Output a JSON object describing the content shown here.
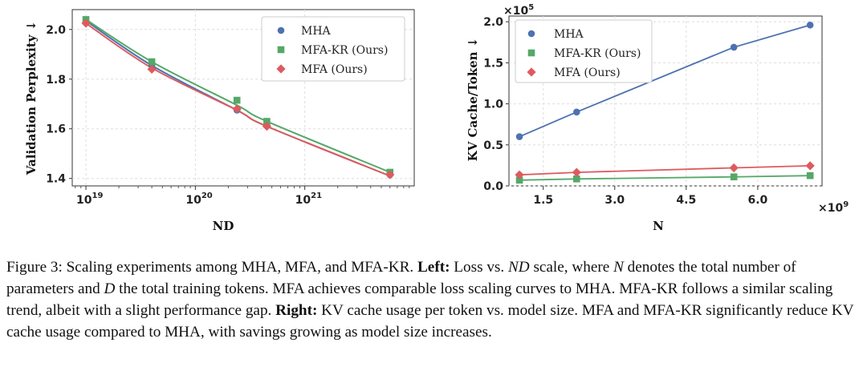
{
  "colors": {
    "MHA": "#4c72b0",
    "MFA-KR (Ours)": "#55a868",
    "MFA (Ours)": "#dd5b5e"
  },
  "chart_data": [
    {
      "type": "line",
      "id": "left",
      "title": "",
      "xlabel": "ND",
      "ylabel": "Validation Perplexity ↓",
      "xscale": "log",
      "xlim": [
        7.5e+18,
        1e+22
      ],
      "ylim": [
        1.37,
        2.08
      ],
      "yticks": [
        1.4,
        1.6,
        1.8,
        2.0
      ],
      "ytick_labels": [
        "1.4",
        "1.6",
        "1.8",
        "2.0"
      ],
      "xticks": [
        1e+19,
        1e+20,
        1e+21
      ],
      "xtick_labels": [
        {
          "base": "10",
          "exp": "19"
        },
        {
          "base": "10",
          "exp": "20"
        },
        {
          "base": "10",
          "exp": "21"
        }
      ],
      "grid": true,
      "legend": "top-right",
      "series": [
        {
          "name": "MHA",
          "marker": "circle",
          "x": [
            1e+19,
            4e+19,
            2.4e+20,
            4.5e+20,
            6e+21
          ],
          "y": [
            2.03,
            1.855,
            1.675,
            1.615,
            1.415
          ]
        },
        {
          "name": "MFA-KR (Ours)",
          "marker": "square",
          "x": [
            1e+19,
            4e+19,
            2.4e+20,
            4.5e+20,
            6e+21
          ],
          "y": [
            2.04,
            1.87,
            1.715,
            1.63,
            1.425
          ]
        },
        {
          "name": "MFA (Ours)",
          "marker": "diamond",
          "x": [
            1e+19,
            4e+19,
            2.4e+20,
            4.5e+20,
            6e+21
          ],
          "y": [
            2.025,
            1.84,
            1.68,
            1.61,
            1.415
          ]
        }
      ],
      "fit_curves": [
        {
          "name": "MHA",
          "x": [
            1e+19,
            4e+19,
            2.4e+20,
            4.5e+20,
            6e+21
          ],
          "y": [
            2.035,
            1.855,
            1.675,
            1.61,
            1.41
          ]
        },
        {
          "name": "MFA-KR (Ours)",
          "x": [
            1e+19,
            4e+19,
            2.4e+20,
            4.5e+20,
            6e+21
          ],
          "y": [
            2.04,
            1.87,
            1.695,
            1.63,
            1.425
          ]
        },
        {
          "name": "MFA (Ours)",
          "x": [
            1e+19,
            4e+19,
            2.4e+20,
            4.5e+20,
            6e+21
          ],
          "y": [
            2.025,
            1.845,
            1.675,
            1.61,
            1.41
          ]
        }
      ]
    },
    {
      "type": "line",
      "id": "right",
      "title": "",
      "xlabel": "N",
      "ylabel": "KV Cache/Token ↓",
      "y_multiplier": {
        "base": "×10",
        "exp": "5"
      },
      "x_multiplier": {
        "base": "×10",
        "exp": "9"
      },
      "xlim": [
        0.78,
        7.35
      ],
      "ylim": [
        0,
        2.07
      ],
      "yticks": [
        0,
        0.5,
        1.0,
        1.5,
        2.0
      ],
      "ytick_labels": [
        "0.0",
        "0.5",
        "1.0",
        "1.5",
        "2.0"
      ],
      "xticks": [
        1.5,
        3.0,
        4.5,
        6.0
      ],
      "xtick_labels": [
        "1.5",
        "3.0",
        "4.5",
        "6.0"
      ],
      "grid": true,
      "legend": "top-left",
      "series": [
        {
          "name": "MHA",
          "marker": "circle",
          "x": [
            1.0,
            2.2,
            5.5,
            7.1
          ],
          "y": [
            0.6,
            0.9,
            1.69,
            1.96
          ]
        },
        {
          "name": "MFA-KR (Ours)",
          "marker": "square",
          "x": [
            1.0,
            2.2,
            5.5,
            7.1
          ],
          "y": [
            0.07,
            0.085,
            0.11,
            0.125
          ]
        },
        {
          "name": "MFA (Ours)",
          "marker": "diamond",
          "x": [
            1.0,
            2.2,
            5.5,
            7.1
          ],
          "y": [
            0.135,
            0.165,
            0.22,
            0.245
          ]
        }
      ]
    }
  ],
  "caption": {
    "label": "Figure 3:",
    "sentence1": "Scaling experiments among MHA, MFA, and MFA-KR.",
    "left_label": "Left:",
    "left_text_a": "Loss vs.",
    "left_math": "ND",
    "left_text_b": "scale, where",
    "left_math_n": "N",
    "left_text_c": "denotes the total number of parameters and",
    "left_math_d": "D",
    "left_text_d": "the total training tokens. MFA achieves comparable loss scaling curves to MHA. MFA-KR follows a similar scaling trend, albeit with a slight performance gap.",
    "right_label": "Right:",
    "right_text": "KV cache usage per token vs. model size. MFA and MFA-KR significantly reduce KV cache usage compared to MHA, with savings growing as model size increases."
  }
}
